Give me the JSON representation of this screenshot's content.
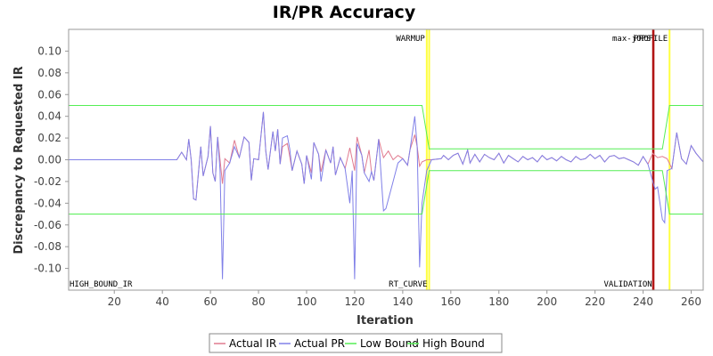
{
  "chart_data": {
    "type": "line",
    "title": "IR/PR Accuracy",
    "xlabel": "Iteration",
    "ylabel": "Discrepancy to Requested IR",
    "xlim": [
      1,
      265
    ],
    "ylim": [
      -0.12,
      0.12
    ],
    "x_ticks": [
      20,
      40,
      60,
      80,
      100,
      120,
      140,
      160,
      180,
      200,
      220,
      240,
      260
    ],
    "y_ticks": [
      -0.1,
      -0.08,
      -0.06,
      -0.04,
      -0.02,
      0.0,
      0.02,
      0.04,
      0.06,
      0.08,
      0.1
    ],
    "x_tick_labels": [
      "20",
      "40",
      "60",
      "80",
      "100",
      "120",
      "140",
      "160",
      "180",
      "200",
      "220",
      "240",
      "260"
    ],
    "y_tick_labels": [
      "-0.10",
      "-0.08",
      "-0.06",
      "-0.04",
      "-0.02",
      "0.00",
      "0.02",
      "0.04",
      "0.06",
      "0.08",
      "0.10"
    ],
    "grid": false,
    "legend_position": "bottom-center",
    "series": [
      {
        "name": "Actual IR",
        "color": "#e07a8f",
        "points": [
          [
            1,
            0
          ],
          [
            46,
            0
          ],
          [
            48,
            0.007
          ],
          [
            50,
            0
          ],
          [
            51,
            0.019
          ],
          [
            52,
            0
          ],
          [
            53,
            -0.036
          ],
          [
            54,
            -0.037
          ],
          [
            56,
            0.012
          ],
          [
            57,
            -0.015
          ],
          [
            59,
            0.003
          ],
          [
            60,
            0.031
          ],
          [
            61,
            -0.012
          ],
          [
            62,
            -0.02
          ],
          [
            63,
            0.021
          ],
          [
            64,
            0
          ],
          [
            65,
            -0.022
          ],
          [
            66,
            0.001
          ],
          [
            68,
            -0.003
          ],
          [
            70,
            0.018
          ],
          [
            72,
            0.002
          ],
          [
            74,
            0.021
          ],
          [
            76,
            0.016
          ],
          [
            77,
            -0.019
          ],
          [
            78,
            0.001
          ],
          [
            80,
            0
          ],
          [
            82,
            0.044
          ],
          [
            83,
            0.008
          ],
          [
            84,
            -0.009
          ],
          [
            86,
            0.026
          ],
          [
            87,
            0.008
          ],
          [
            88,
            0.028
          ],
          [
            89,
            -0.004
          ],
          [
            90,
            0.012
          ],
          [
            92,
            0.015
          ],
          [
            93,
            0.003
          ],
          [
            94,
            -0.01
          ],
          [
            96,
            0.008
          ],
          [
            98,
            -0.004
          ],
          [
            99,
            -0.022
          ],
          [
            100,
            0.004
          ],
          [
            102,
            -0.012
          ],
          [
            103,
            0.016
          ],
          [
            105,
            0.005
          ],
          [
            106,
            -0.011
          ],
          [
            108,
            0.009
          ],
          [
            110,
            -0.003
          ],
          [
            111,
            0.012
          ],
          [
            112,
            -0.014
          ],
          [
            114,
            0.002
          ],
          [
            116,
            -0.008
          ],
          [
            118,
            0.011
          ],
          [
            120,
            -0.01
          ],
          [
            121,
            0.021
          ],
          [
            123,
            0.004
          ],
          [
            124,
            -0.012
          ],
          [
            126,
            0.009
          ],
          [
            127,
            -0.011
          ],
          [
            128,
            -0.019
          ],
          [
            130,
            0.019
          ],
          [
            132,
            0.002
          ],
          [
            134,
            0.008
          ],
          [
            136,
            0
          ],
          [
            138,
            0.004
          ],
          [
            140,
            0.001
          ],
          [
            142,
            -0.005
          ],
          [
            143,
            0.009
          ],
          [
            145,
            0.023
          ],
          [
            146,
            0.012
          ],
          [
            147,
            -0.006
          ],
          [
            148,
            -0.002
          ],
          [
            150,
            0
          ],
          [
            152,
            0
          ],
          [
            156,
            0.001
          ],
          [
            157,
            0.004
          ],
          [
            159,
            0
          ],
          [
            161,
            0.004
          ],
          [
            163,
            0.006
          ],
          [
            165,
            -0.004
          ],
          [
            167,
            0.009
          ],
          [
            168,
            -0.003
          ],
          [
            170,
            0.005
          ],
          [
            172,
            -0.002
          ],
          [
            174,
            0.005
          ],
          [
            176,
            0.002
          ],
          [
            178,
            0
          ],
          [
            180,
            0.006
          ],
          [
            182,
            -0.003
          ],
          [
            184,
            0.004
          ],
          [
            186,
            0.001
          ],
          [
            188,
            -0.002
          ],
          [
            190,
            0.003
          ],
          [
            192,
            0
          ],
          [
            194,
            0.002
          ],
          [
            196,
            -0.002
          ],
          [
            198,
            0.004
          ],
          [
            200,
            0
          ],
          [
            202,
            0.002
          ],
          [
            204,
            -0.001
          ],
          [
            206,
            0.003
          ],
          [
            208,
            0
          ],
          [
            210,
            -0.002
          ],
          [
            212,
            0.003
          ],
          [
            214,
            0
          ],
          [
            216,
            0.001
          ],
          [
            218,
            0.005
          ],
          [
            220,
            0.001
          ],
          [
            222,
            0.004
          ],
          [
            224,
            -0.002
          ],
          [
            226,
            0.003
          ],
          [
            228,
            0.004
          ],
          [
            230,
            0.001
          ],
          [
            232,
            0.002
          ],
          [
            234,
            0
          ],
          [
            236,
            -0.002
          ],
          [
            238,
            -0.005
          ],
          [
            240,
            0.003
          ],
          [
            242,
            -0.004
          ],
          [
            244,
            0.006
          ],
          [
            246,
            0.002
          ],
          [
            248,
            0.003
          ],
          [
            250,
            0.001
          ],
          [
            252,
            -0.008
          ],
          [
            254,
            0.025
          ],
          [
            256,
            0.001
          ],
          [
            258,
            -0.004
          ],
          [
            260,
            0.013
          ],
          [
            262,
            0.006
          ],
          [
            265,
            -0.002
          ]
        ]
      },
      {
        "name": "Actual PR",
        "color": "#8080e8",
        "points": [
          [
            1,
            0
          ],
          [
            46,
            0
          ],
          [
            48,
            0.007
          ],
          [
            50,
            0
          ],
          [
            51,
            0.019
          ],
          [
            52,
            0
          ],
          [
            53,
            -0.036
          ],
          [
            54,
            -0.037
          ],
          [
            56,
            0.012
          ],
          [
            57,
            -0.015
          ],
          [
            59,
            0.003
          ],
          [
            60,
            0.031
          ],
          [
            61,
            -0.012
          ],
          [
            62,
            -0.02
          ],
          [
            63,
            0.021
          ],
          [
            64,
            -0.01
          ],
          [
            65,
            -0.11
          ],
          [
            66,
            -0.01
          ],
          [
            68,
            -0.003
          ],
          [
            70,
            0.012
          ],
          [
            72,
            0.002
          ],
          [
            74,
            0.021
          ],
          [
            76,
            0.016
          ],
          [
            77,
            -0.019
          ],
          [
            78,
            0.001
          ],
          [
            80,
            0
          ],
          [
            82,
            0.044
          ],
          [
            83,
            0.008
          ],
          [
            84,
            -0.009
          ],
          [
            86,
            0.026
          ],
          [
            87,
            0.008
          ],
          [
            88,
            0.028
          ],
          [
            89,
            -0.004
          ],
          [
            90,
            0.02
          ],
          [
            92,
            0.022
          ],
          [
            93,
            0.01
          ],
          [
            94,
            -0.01
          ],
          [
            96,
            0.008
          ],
          [
            98,
            -0.004
          ],
          [
            99,
            -0.022
          ],
          [
            100,
            0.004
          ],
          [
            102,
            -0.018
          ],
          [
            103,
            0.016
          ],
          [
            105,
            0.005
          ],
          [
            106,
            -0.02
          ],
          [
            108,
            0.009
          ],
          [
            110,
            -0.003
          ],
          [
            111,
            0.012
          ],
          [
            112,
            -0.014
          ],
          [
            114,
            0.002
          ],
          [
            116,
            -0.008
          ],
          [
            118,
            -0.04
          ],
          [
            119,
            -0.01
          ],
          [
            120,
            -0.11
          ],
          [
            121,
            0.015
          ],
          [
            123,
            0.004
          ],
          [
            124,
            -0.012
          ],
          [
            126,
            -0.02
          ],
          [
            127,
            -0.011
          ],
          [
            128,
            -0.019
          ],
          [
            130,
            0.019
          ],
          [
            132,
            -0.047
          ],
          [
            133,
            -0.045
          ],
          [
            136,
            -0.02
          ],
          [
            138,
            -0.003
          ],
          [
            140,
            0.001
          ],
          [
            142,
            -0.005
          ],
          [
            143,
            0.009
          ],
          [
            145,
            0.04
          ],
          [
            146,
            0.012
          ],
          [
            147,
            -0.099
          ],
          [
            148,
            -0.04
          ],
          [
            150,
            -0.01
          ],
          [
            152,
            0
          ],
          [
            156,
            0.001
          ],
          [
            157,
            0.004
          ],
          [
            159,
            0
          ],
          [
            161,
            0.004
          ],
          [
            163,
            0.006
          ],
          [
            165,
            -0.004
          ],
          [
            167,
            0.009
          ],
          [
            168,
            -0.003
          ],
          [
            170,
            0.005
          ],
          [
            172,
            -0.002
          ],
          [
            174,
            0.005
          ],
          [
            176,
            0.002
          ],
          [
            178,
            0
          ],
          [
            180,
            0.006
          ],
          [
            182,
            -0.003
          ],
          [
            184,
            0.004
          ],
          [
            186,
            0.001
          ],
          [
            188,
            -0.002
          ],
          [
            190,
            0.003
          ],
          [
            192,
            0
          ],
          [
            194,
            0.002
          ],
          [
            196,
            -0.002
          ],
          [
            198,
            0.004
          ],
          [
            200,
            0
          ],
          [
            202,
            0.002
          ],
          [
            204,
            -0.001
          ],
          [
            206,
            0.003
          ],
          [
            208,
            0
          ],
          [
            210,
            -0.002
          ],
          [
            212,
            0.003
          ],
          [
            214,
            0
          ],
          [
            216,
            0.001
          ],
          [
            218,
            0.005
          ],
          [
            220,
            0.001
          ],
          [
            222,
            0.004
          ],
          [
            224,
            -0.002
          ],
          [
            226,
            0.003
          ],
          [
            228,
            0.004
          ],
          [
            230,
            0.001
          ],
          [
            232,
            0.002
          ],
          [
            234,
            0
          ],
          [
            236,
            -0.002
          ],
          [
            238,
            -0.005
          ],
          [
            240,
            0.003
          ],
          [
            242,
            -0.004
          ],
          [
            244,
            -0.02
          ],
          [
            245,
            -0.027
          ],
          [
            246,
            -0.025
          ],
          [
            248,
            -0.055
          ],
          [
            249,
            -0.058
          ],
          [
            250,
            -0.01
          ],
          [
            252,
            -0.008
          ],
          [
            254,
            0.025
          ],
          [
            256,
            0.001
          ],
          [
            258,
            -0.004
          ],
          [
            260,
            0.013
          ],
          [
            262,
            0.006
          ],
          [
            265,
            -0.002
          ]
        ]
      },
      {
        "name": "Low Bound",
        "color": "#55ee55",
        "points": [
          [
            1,
            -0.05
          ],
          [
            148,
            -0.05
          ],
          [
            151,
            -0.01
          ],
          [
            248,
            -0.01
          ],
          [
            251,
            -0.05
          ],
          [
            265,
            -0.05
          ]
        ]
      },
      {
        "name": "High Bound",
        "color": "#55ee55",
        "points": [
          [
            1,
            0.05
          ],
          [
            148,
            0.05
          ],
          [
            151,
            0.01
          ],
          [
            248,
            0.01
          ],
          [
            251,
            0.05
          ],
          [
            265,
            0.05
          ]
        ]
      }
    ],
    "markers": [
      {
        "x": 150,
        "label": "WARMUP",
        "color": "#ffff40",
        "label_position": "top"
      },
      {
        "x": 151,
        "label": "RT_CURVE",
        "color": "#ffff40",
        "label_position": "bottom"
      },
      {
        "x": 244,
        "label": "max-jOPS",
        "color": "#aa0000",
        "label_position": "top"
      },
      {
        "x": 244.5,
        "label": "VALIDATION",
        "color": "#aa0000",
        "label_position": "bottom"
      },
      {
        "x": 251,
        "label": "PROFILE",
        "color": "#ffff40",
        "label_position": "top"
      },
      {
        "x": 1,
        "label": "HIGH_BOUND_IR",
        "color": "#ffffff",
        "label_position": "bottom"
      }
    ]
  }
}
